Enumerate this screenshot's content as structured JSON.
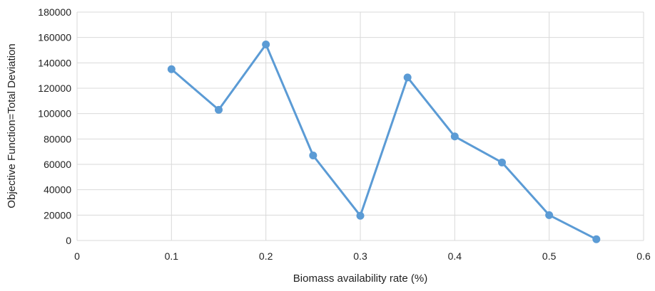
{
  "chart_data": {
    "type": "line",
    "title": "",
    "xlabel": "Biomass availability rate (%)",
    "ylabel": "Objective Function=Total Deviation",
    "xlim": [
      0,
      0.6
    ],
    "ylim": [
      0,
      180000
    ],
    "x_ticks": [
      "0",
      "0.1",
      "0.2",
      "0.3",
      "0.4",
      "0.5",
      "0.6"
    ],
    "y_ticks": [
      "0",
      "20000",
      "40000",
      "60000",
      "80000",
      "100000",
      "120000",
      "140000",
      "160000",
      "180000"
    ],
    "grid": true,
    "legend": "none",
    "series": [
      {
        "color": "#5B9BD5",
        "marker": "circle",
        "x": [
          0.1,
          0.15,
          0.2,
          0.25,
          0.3,
          0.35,
          0.4,
          0.45,
          0.5,
          0.55
        ],
        "y": [
          135000,
          103000,
          154500,
          67000,
          19500,
          128500,
          82000,
          61500,
          20000,
          1000
        ]
      }
    ]
  },
  "colors": {
    "grid": "#d9d9d9",
    "series": "#5B9BD5"
  }
}
